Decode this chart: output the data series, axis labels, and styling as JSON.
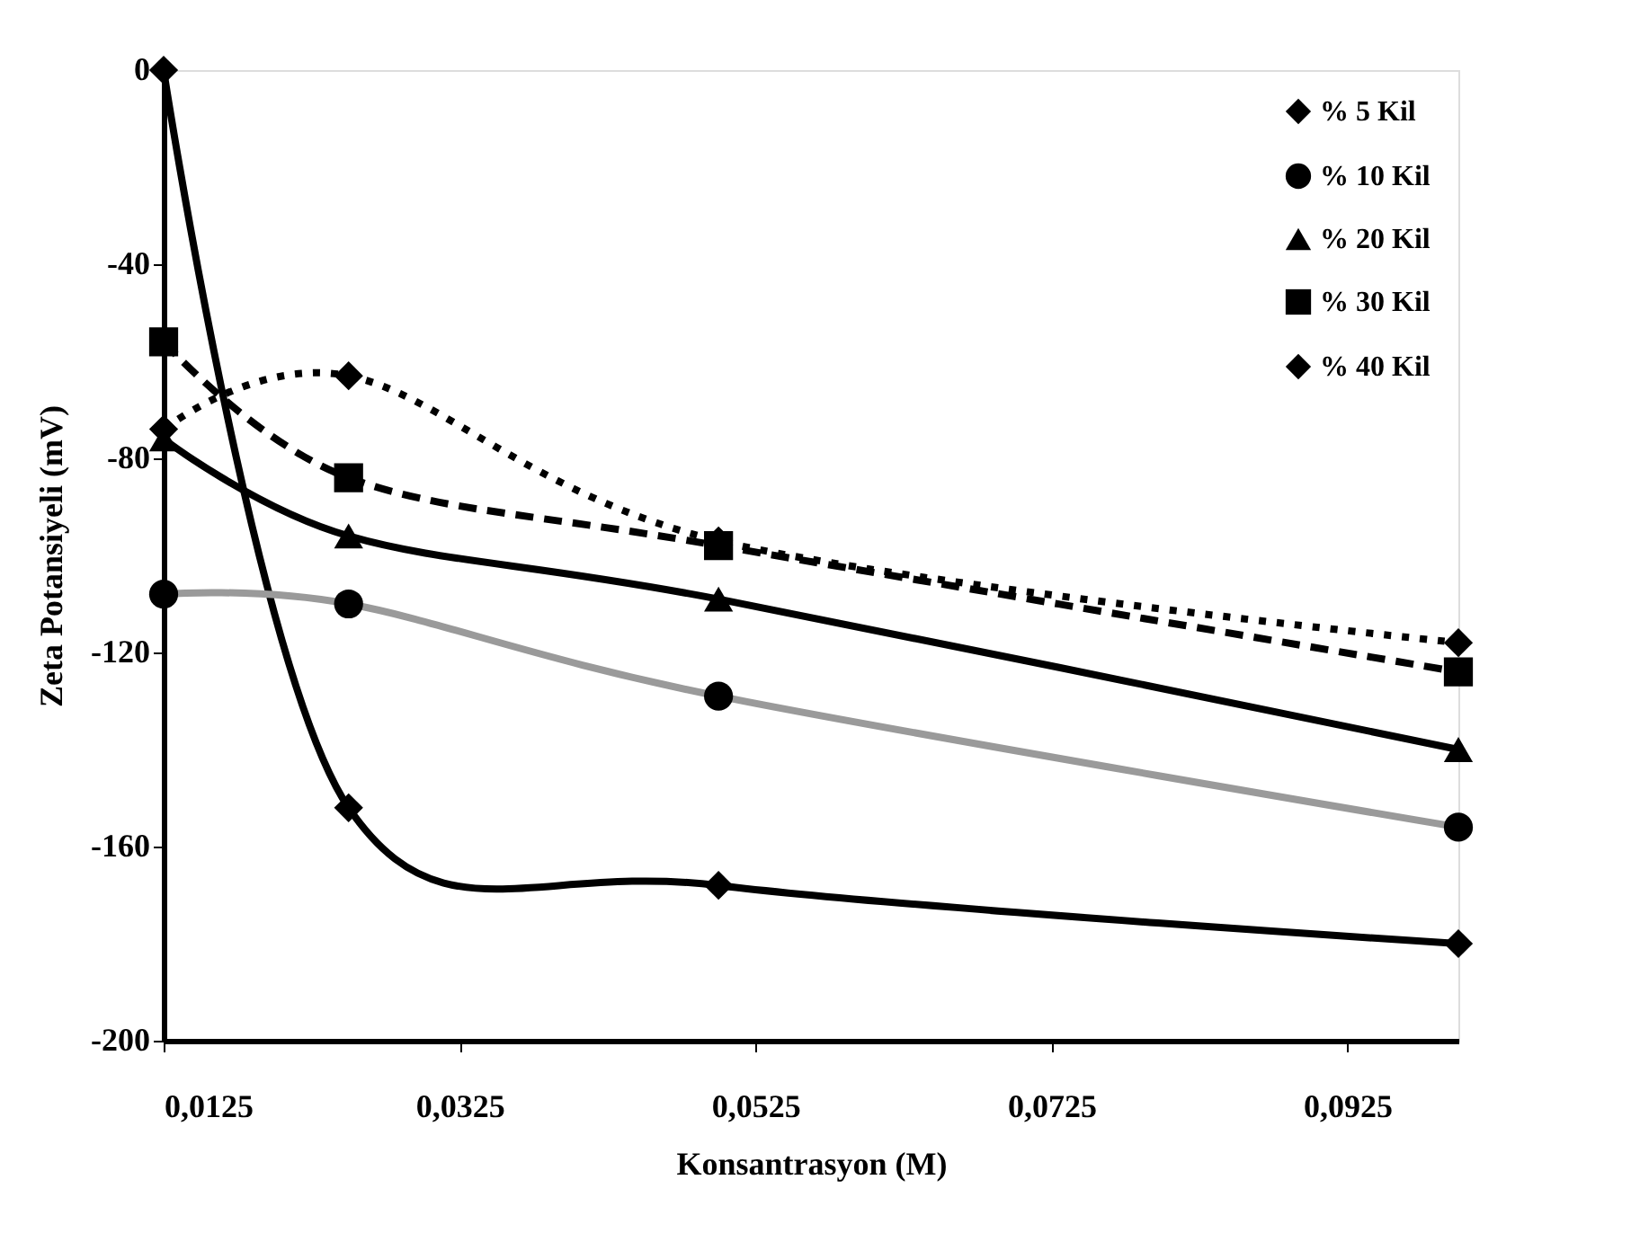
{
  "chart_data": {
    "type": "line",
    "xlabel": "Konsantrasyon (M)",
    "ylabel": "Zeta Potansiyeli (mV)",
    "x": [
      0.0125,
      0.025,
      0.05,
      0.1
    ],
    "xlim": [
      0.0125,
      0.1
    ],
    "xticks": [
      {
        "value": 0.0125,
        "label": "0,0125"
      },
      {
        "value": 0.0325,
        "label": "0,0325"
      },
      {
        "value": 0.0525,
        "label": "0,0525"
      },
      {
        "value": 0.0725,
        "label": "0,0725"
      },
      {
        "value": 0.0925,
        "label": "0,0925"
      }
    ],
    "ylim": [
      -200,
      0
    ],
    "yticks": [
      -200,
      -160,
      -120,
      -80,
      -40,
      0
    ],
    "grid": false,
    "legend": "top right",
    "series": [
      {
        "name": "% 5 Kil",
        "color": "#000000",
        "marker": "diamond",
        "line_style": "solid",
        "values": [
          0,
          -152,
          -168,
          -180
        ]
      },
      {
        "name": "% 10 Kil",
        "color": "#9a9a9a",
        "marker": "circle",
        "line_style": "solid",
        "values": [
          -108,
          -110,
          -129,
          -156
        ]
      },
      {
        "name": "% 20 Kil",
        "color": "#000000",
        "marker": "triangle",
        "line_style": "solid",
        "values": [
          -76,
          -96,
          -109,
          -140
        ]
      },
      {
        "name": "% 30 Kil",
        "color": "#000000",
        "marker": "square",
        "line_style": "dashed",
        "values": [
          -56,
          -84,
          -98,
          -124
        ]
      },
      {
        "name": "% 40 Kil",
        "color": "#000000",
        "marker": "diamond",
        "line_style": "dotted",
        "values": [
          -74,
          -63,
          -97,
          -118
        ]
      }
    ]
  }
}
